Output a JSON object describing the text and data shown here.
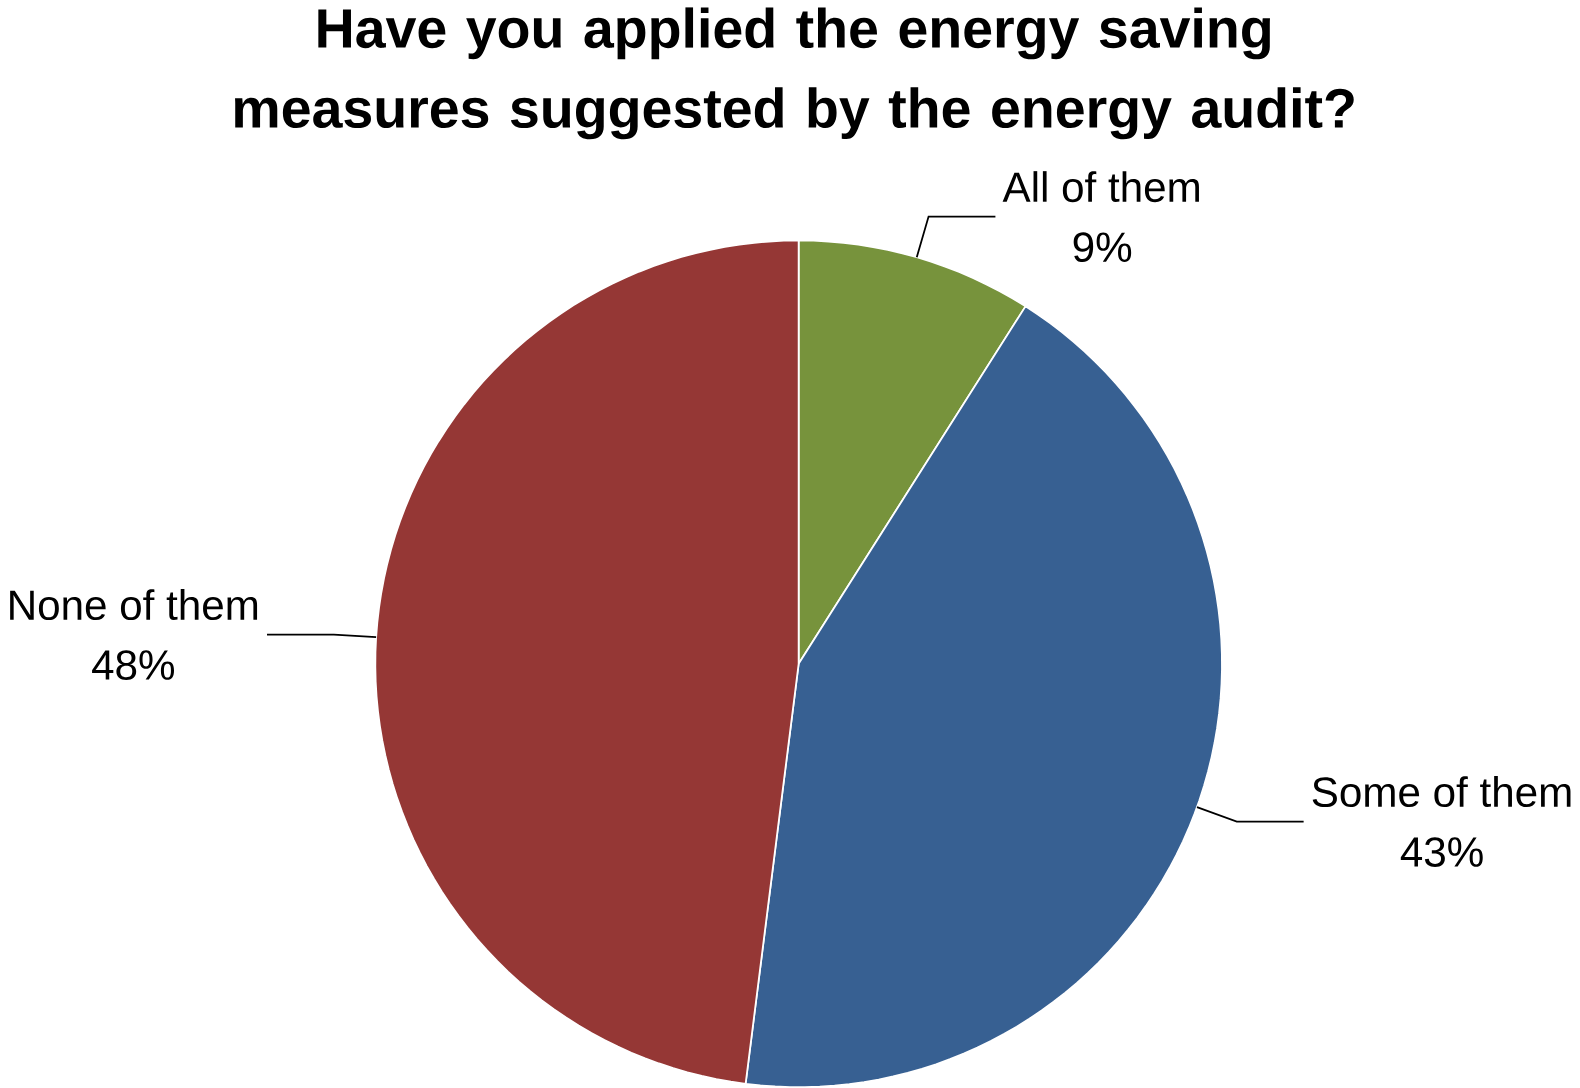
{
  "chart_data": {
    "type": "pie",
    "title": "Have you applied the energy saving measures suggested by the energy audit?",
    "categories": [
      "All of them",
      "Some of them",
      "None of them"
    ],
    "values": [
      9,
      43,
      48
    ],
    "value_labels": [
      "9%",
      "43%",
      "48%"
    ],
    "colors": [
      "#77933c",
      "#376092",
      "#953735"
    ]
  }
}
